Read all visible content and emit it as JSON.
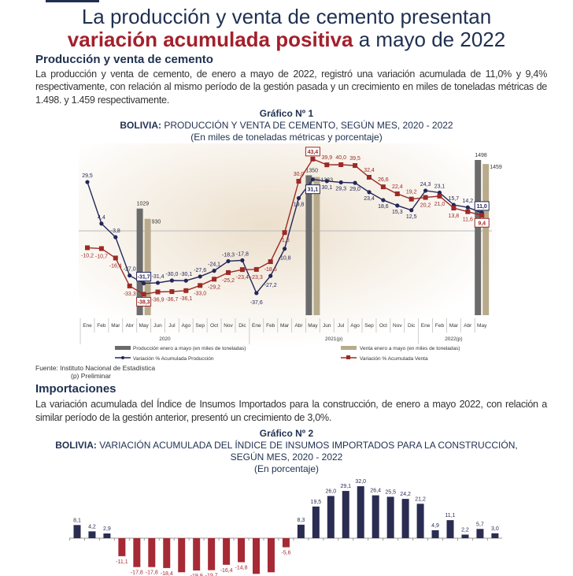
{
  "header": {
    "title_line1": "La producción y venta de cemento presentan",
    "title_highlight": "variación acumulada positiva",
    "title_rest": " a mayo de 2022"
  },
  "section1": {
    "heading": "Producción y venta de cemento",
    "paragraph": "La producción y venta de cemento, de enero a mayo de 2022, registró una variación acumulada de 11,0% y 9,4% respectivamente, con relación al mismo período de la gestión pasada y un crecimiento en miles de toneladas métricas de 1.498. y 1.459 respectivamente."
  },
  "chart1_header": {
    "number": "Gráfico Nº 1",
    "title_prefix": "BOLIVIA:",
    "title": "PRODUCCIÓN Y VENTA DE CEMENTO, SEGÚN MES, 2020 - 2022",
    "subtitle": "(En miles de toneladas métricas y porcentaje)"
  },
  "chart1_source": {
    "source": "Fuente: Instituto Nacional de Estadística",
    "note": "(p) Preliminar"
  },
  "section2": {
    "heading": "Importaciones",
    "paragraph": "La variación acumulada del Índice de Insumos Importados para la construcción, de enero a mayo 2022, con relación a similar período de la gestión anterior, presentó un crecimiento de 3,0%."
  },
  "chart2_header": {
    "number": "Gráfico Nº 2",
    "title_prefix": "BOLIVIA:",
    "title": "VARIACIÓN ACUMULADA DEL ÍNDICE DE INSUMOS IMPORTADOS PARA LA CONSTRUCCIÓN,",
    "title2": "SEGÚN MES, 2020 - 2022",
    "subtitle": "(En porcentaje)"
  },
  "colors": {
    "navy": "#1f3050",
    "red": "#a3202c",
    "prod_bar": "#6b6b6b",
    "sale_bar": "#b8ab8c",
    "line_prod": "#23265a",
    "line_sale": "#9b2a26"
  },
  "chart_data": [
    {
      "type": "line",
      "title": "BOLIVIA: PRODUCCIÓN Y VENTA DE CEMENTO, SEGÚN MES, 2020 - 2022",
      "categories": [
        "Ene",
        "Feb",
        "Mar",
        "Abr",
        "May",
        "Jun",
        "Jul",
        "Ago",
        "Sep",
        "Oct",
        "Nov",
        "Dic",
        "Ene",
        "Feb",
        "Mar",
        "Abr",
        "May",
        "Jun",
        "Jul",
        "Ago",
        "Sep",
        "Oct",
        "Nov",
        "Dic",
        "Ene",
        "Feb",
        "Mar",
        "Abr",
        "May"
      ],
      "years": [
        {
          "label": "2020",
          "months": 12
        },
        {
          "label": "2021(p)",
          "months": 12
        },
        {
          "label": "2022(p)",
          "months": 5
        }
      ],
      "series": [
        {
          "name": "Variación % Acumulada Producción",
          "values": [
            29.5,
            4.4,
            -3.8,
            -27.0,
            -31.7,
            -31.4,
            -30.0,
            -30.1,
            -27.6,
            -24.1,
            -18.3,
            -17.8,
            -37.6,
            -27.2,
            -10.8,
            19.8,
            31.1,
            30.1,
            29.3,
            29.0,
            23.4,
            18.6,
            15.3,
            12.5,
            24.3,
            23.1,
            15.7,
            14.2,
            11.0
          ],
          "highlight": [
            4,
            16,
            28
          ]
        },
        {
          "name": "Variación % Acumulada Venta",
          "values": [
            -10.2,
            -10.7,
            -16.4,
            -33.3,
            -38.3,
            -36.9,
            -36.7,
            -36.1,
            -33.0,
            -29.2,
            -25.2,
            -23.4,
            -23.3,
            -18.6,
            -1.0,
            30.0,
            43.4,
            39.9,
            40.0,
            39.5,
            32.4,
            26.6,
            22.4,
            19.2,
            20.2,
            21.0,
            13.8,
            11.6,
            9.4
          ],
          "highlight": [
            4,
            16,
            28
          ]
        }
      ],
      "bars": [
        {
          "name": "Producción enero a mayo (en miles de toneladas)",
          "index": [
            4,
            16,
            28
          ],
          "values": [
            1029,
            1350,
            1498
          ]
        },
        {
          "name": "Venta enero a mayo (en miles de toneladas)",
          "index": [
            4,
            16,
            28
          ],
          "values": [
            930,
            1333,
            1459
          ]
        }
      ],
      "legend": "bottom"
    },
    {
      "type": "bar",
      "title": "BOLIVIA: VARIACIÓN ACUMULADA DEL ÍNDICE DE INSUMOS IMPORTADOS PARA LA CONSTRUCCIÓN, SEGÚN MES, 2020 - 2022",
      "ylabel": "En porcentaje",
      "values": [
        8.1,
        4.2,
        2.9,
        -11.1,
        -17.8,
        -17.8,
        -18.4,
        -21.0,
        -19.9,
        -19.7,
        -16.4,
        -14.8,
        -22.0,
        -21.0,
        -5.6,
        8.3,
        19.5,
        26.0,
        29.1,
        32.0,
        26.4,
        25.5,
        24.2,
        21.2,
        4.9,
        11.1,
        2.2,
        5.7,
        3.0
      ],
      "labels": [
        "8,1",
        "4,2",
        "2,9",
        "-11,1",
        "-17,8",
        "-17,8",
        "-18,4",
        "",
        "-19,9",
        "-19,7",
        "-16,4",
        "-14,8",
        "",
        "",
        "-5,6",
        "8,3",
        "19,5",
        "26,0",
        "29,1",
        "32,0",
        "26,4",
        "25,5",
        "24,2",
        "21,2",
        "4,9",
        "11,1",
        "2,2",
        "5,7",
        "3,0"
      ]
    }
  ]
}
